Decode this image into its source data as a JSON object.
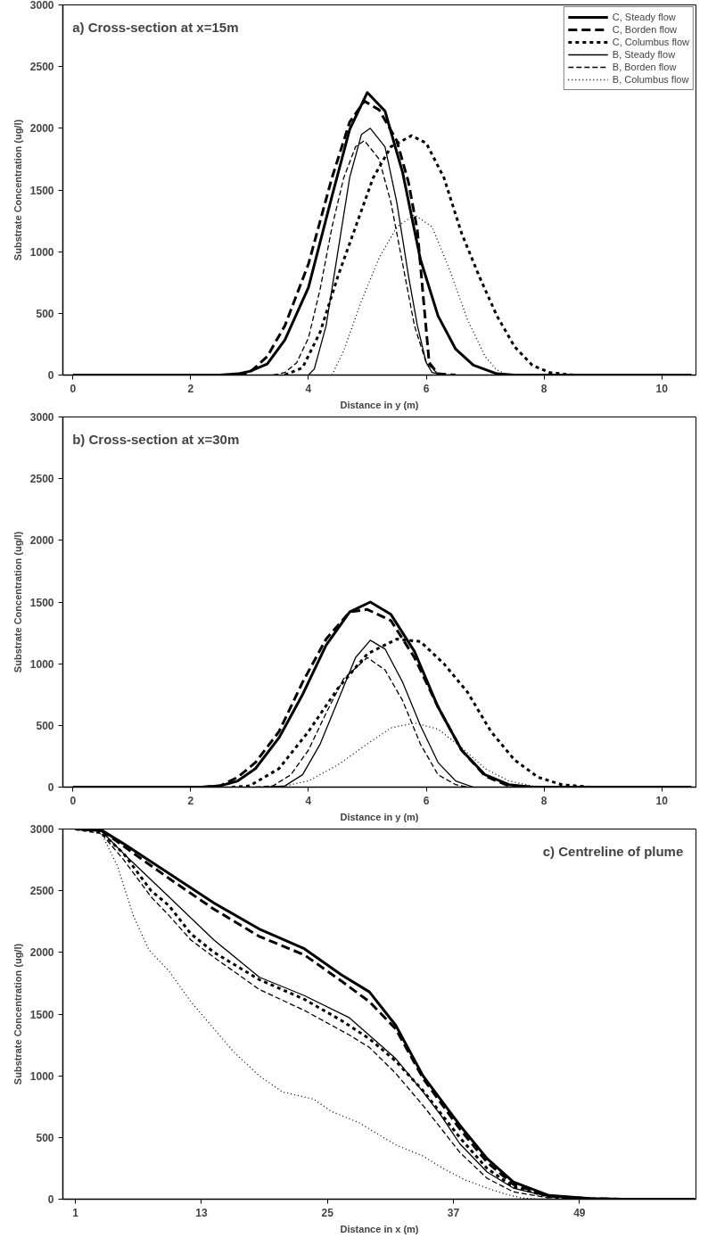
{
  "chart_data": [
    {
      "type": "line",
      "title": "a) Cross-section at x=15m",
      "xlabel": "Distance in y (m)",
      "ylabel": "Substrate Concentration (ug/l)",
      "xlim": [
        -0.17,
        10.58
      ],
      "ylim": [
        0,
        3000
      ],
      "xticks": [
        0,
        2,
        4,
        6,
        8,
        10
      ],
      "yticks": [
        0,
        500,
        1000,
        1500,
        2000,
        2500,
        3000
      ],
      "legend": "top right",
      "series": [
        {
          "name": "C, Steady flow",
          "color": "#000000",
          "line_style": "solid",
          "x": [
            0,
            2.5,
            2.8,
            3.0,
            3.3,
            3.6,
            4.0,
            4.4,
            4.7,
            5.0,
            5.3,
            5.6,
            5.9,
            6.2,
            6.5,
            6.8,
            7.2,
            7.5,
            10.5
          ],
          "values": [
            0,
            0,
            10,
            30,
            90,
            285,
            710,
            1450,
            1990,
            2290,
            2140,
            1640,
            940,
            480,
            210,
            80,
            10,
            0,
            0
          ]
        },
        {
          "name": "C, Borden flow",
          "color": "#000000",
          "line_style": "dashed",
          "x": [
            2.8,
            3.0,
            3.3,
            3.6,
            4.0,
            4.4,
            4.7,
            4.95,
            5.2,
            5.5,
            5.7,
            5.85,
            5.95,
            6.05,
            6.2,
            6.5
          ],
          "values": [
            0,
            20,
            150,
            400,
            900,
            1600,
            2050,
            2220,
            2150,
            1900,
            1560,
            1170,
            630,
            100,
            10,
            0
          ]
        },
        {
          "name": "C, Columbus flow",
          "color": "#000000",
          "line_style": "dotted",
          "x": [
            3.6,
            3.9,
            4.2,
            4.5,
            4.8,
            5.1,
            5.4,
            5.75,
            6.0,
            6.3,
            6.6,
            6.9,
            7.2,
            7.5,
            7.8,
            8.1,
            8.5
          ],
          "values": [
            0,
            60,
            350,
            800,
            1200,
            1600,
            1850,
            1940,
            1880,
            1600,
            1150,
            800,
            480,
            230,
            80,
            20,
            0
          ]
        },
        {
          "name": "B, Steady flow",
          "color": "#000000",
          "line_style": "solid",
          "x": [
            4.0,
            4.1,
            4.3,
            4.5,
            4.7,
            4.9,
            5.05,
            5.3,
            5.5,
            5.7,
            5.85,
            6.0,
            6.1,
            6.3
          ],
          "values": [
            0,
            50,
            400,
            1000,
            1600,
            1950,
            2000,
            1850,
            1400,
            800,
            400,
            100,
            20,
            0
          ]
        },
        {
          "name": "B, Borden flow",
          "color": "#000000",
          "line_style": "dashed",
          "x": [
            3.4,
            3.6,
            3.8,
            4.0,
            4.2,
            4.4,
            4.6,
            4.8,
            4.95,
            5.2,
            5.4,
            5.6,
            5.8,
            6.0,
            6.2,
            6.4
          ],
          "values": [
            0,
            20,
            100,
            300,
            700,
            1200,
            1600,
            1850,
            1900,
            1750,
            1400,
            900,
            400,
            100,
            10,
            0
          ]
        },
        {
          "name": "B, Columbus flow",
          "color": "#000000",
          "line_style": "dotted",
          "x": [
            4.4,
            4.6,
            4.9,
            5.2,
            5.5,
            5.8,
            6.1,
            6.4,
            6.7,
            7.0,
            7.2,
            7.4
          ],
          "values": [
            0,
            200,
            600,
            950,
            1200,
            1300,
            1200,
            850,
            450,
            150,
            40,
            0
          ]
        }
      ]
    },
    {
      "type": "line",
      "title": "b) Cross-section at x=30m",
      "xlabel": "Distance in y (m)",
      "ylabel": "Substrate Concentration (ug/l)",
      "xlim": [
        -0.17,
        10.58
      ],
      "ylim": [
        0,
        3000
      ],
      "xticks": [
        0,
        2,
        4,
        6,
        8,
        10
      ],
      "yticks": [
        0,
        500,
        1000,
        1500,
        2000,
        2500,
        3000
      ],
      "series": [
        {
          "color": "#000000",
          "line_style": "solid",
          "x": [
            0,
            2.2,
            2.5,
            2.8,
            3.1,
            3.5,
            3.9,
            4.3,
            4.7,
            5.05,
            5.4,
            5.8,
            6.2,
            6.6,
            7.0,
            7.4,
            7.8,
            10.5
          ],
          "values": [
            0,
            0,
            10,
            50,
            150,
            400,
            750,
            1150,
            1420,
            1500,
            1400,
            1100,
            650,
            300,
            100,
            20,
            0,
            0
          ]
        },
        {
          "color": "#000000",
          "line_style": "dashed",
          "x": [
            2.2,
            2.5,
            2.8,
            3.1,
            3.5,
            3.9,
            4.3,
            4.7,
            5.0,
            5.4,
            5.8,
            6.2,
            6.6,
            7.0,
            7.4,
            7.8
          ],
          "values": [
            0,
            10,
            80,
            200,
            450,
            850,
            1200,
            1420,
            1440,
            1350,
            1050,
            650,
            300,
            90,
            10,
            0
          ]
        },
        {
          "color": "#000000",
          "line_style": "dotted",
          "x": [
            2.7,
            3.0,
            3.5,
            4.0,
            4.5,
            5.0,
            5.5,
            5.9,
            6.3,
            6.7,
            7.1,
            7.5,
            7.9,
            8.3,
            8.8
          ],
          "values": [
            0,
            10,
            150,
            450,
            800,
            1080,
            1200,
            1180,
            1000,
            770,
            450,
            220,
            80,
            20,
            0
          ]
        },
        {
          "color": "#000000",
          "line_style": "solid",
          "x": [
            3.3,
            3.6,
            3.9,
            4.2,
            4.5,
            4.8,
            5.05,
            5.3,
            5.6,
            5.9,
            6.2,
            6.5,
            6.8
          ],
          "values": [
            0,
            10,
            100,
            350,
            700,
            1050,
            1190,
            1120,
            850,
            500,
            200,
            50,
            0
          ]
        },
        {
          "color": "#000000",
          "line_style": "dashed",
          "x": [
            3.1,
            3.4,
            3.7,
            4.0,
            4.3,
            4.6,
            5.0,
            5.3,
            5.6,
            5.9,
            6.2,
            6.5,
            6.7
          ],
          "values": [
            0,
            10,
            100,
            300,
            600,
            880,
            1050,
            950,
            700,
            350,
            100,
            20,
            0
          ]
        },
        {
          "color": "#000000",
          "line_style": "dotted",
          "x": [
            3.5,
            4.0,
            4.5,
            5.0,
            5.4,
            5.8,
            6.2,
            6.6,
            7.0,
            7.4,
            7.8,
            8.2
          ],
          "values": [
            0,
            50,
            180,
            350,
            480,
            520,
            470,
            320,
            150,
            50,
            10,
            0
          ]
        }
      ]
    },
    {
      "type": "line",
      "title": "c) Centreline of plume",
      "xlabel": "Distance in x (m)",
      "ylabel": "Substrate Concentration (ug/l)",
      "xlim": [
        -0.2,
        60.1
      ],
      "ylim": [
        0,
        3000
      ],
      "xticks": [
        1,
        13,
        25,
        37,
        49
      ],
      "yticks": [
        0,
        500,
        1000,
        1500,
        2000,
        2500,
        3000
      ],
      "series": [
        {
          "color": "#000000",
          "line_style": "solid",
          "x": [
            1,
            3.5,
            5.6,
            9.9,
            14.2,
            18.5,
            22.8,
            26.3,
            29,
            31.5,
            34.1,
            37.6,
            40.2,
            42.7,
            46.1,
            50,
            53,
            60
          ],
          "values": [
            3000,
            2990,
            2880,
            2640,
            2400,
            2190,
            2030,
            1820,
            1680,
            1410,
            1000,
            600,
            330,
            140,
            30,
            5,
            0,
            0
          ]
        },
        {
          "color": "#000000",
          "line_style": "dashed",
          "x": [
            3.5,
            5.6,
            9.9,
            14.2,
            18.5,
            22.8,
            26.3,
            29,
            31.5,
            34.1,
            37.6,
            40.2,
            42.7,
            46.1,
            50,
            53,
            60
          ],
          "values": [
            2990,
            2860,
            2600,
            2350,
            2130,
            1980,
            1770,
            1600,
            1380,
            980,
            570,
            300,
            120,
            25,
            5,
            0,
            0
          ]
        },
        {
          "color": "#000000",
          "line_style": "dotted",
          "x": [
            1,
            3.5,
            5.6,
            8.2,
            9.9,
            12,
            14.2,
            18.5,
            22.8,
            26.3,
            29,
            31.5,
            34.1,
            37.6,
            40.2,
            42.7,
            46.1,
            50
          ],
          "values": [
            3000,
            2970,
            2800,
            2500,
            2380,
            2150,
            2000,
            1780,
            1620,
            1450,
            1300,
            1120,
            880,
            500,
            250,
            100,
            20,
            0
          ]
        },
        {
          "color": "#000000",
          "line_style": "solid",
          "x": [
            1,
            3.5,
            5.6,
            9.9,
            14.2,
            18.5,
            22.8,
            27.1,
            31.5,
            34.1,
            35.8,
            37.6,
            40.2,
            42.7,
            46.1,
            50,
            53
          ],
          "values": [
            3000,
            2980,
            2800,
            2450,
            2100,
            1800,
            1650,
            1470,
            1140,
            870,
            680,
            450,
            220,
            90,
            20,
            5,
            0
          ]
        },
        {
          "color": "#000000",
          "line_style": "dashed",
          "x": [
            3.5,
            5.6,
            8.2,
            9.9,
            12,
            14.2,
            18.5,
            22.8,
            27.1,
            29,
            31.5,
            34.1,
            37.6,
            40.2,
            42.7,
            46.1
          ],
          "values": [
            2960,
            2750,
            2450,
            2300,
            2100,
            1960,
            1700,
            1530,
            1330,
            1230,
            1020,
            760,
            380,
            170,
            60,
            10
          ]
        },
        {
          "color": "#000000",
          "line_style": "dotted",
          "x": [
            1,
            3.5,
            5,
            6.5,
            8,
            9.9,
            12,
            14.2,
            16,
            18.5,
            20.7,
            23.7,
            25.4,
            28,
            31.5,
            34.1,
            36,
            38,
            40.2,
            42,
            43.5,
            45
          ],
          "values": [
            3000,
            2960,
            2700,
            2300,
            2020,
            1850,
            1600,
            1380,
            1200,
            1000,
            870,
            810,
            710,
            620,
            440,
            350,
            250,
            160,
            90,
            40,
            10,
            0
          ]
        }
      ]
    }
  ]
}
